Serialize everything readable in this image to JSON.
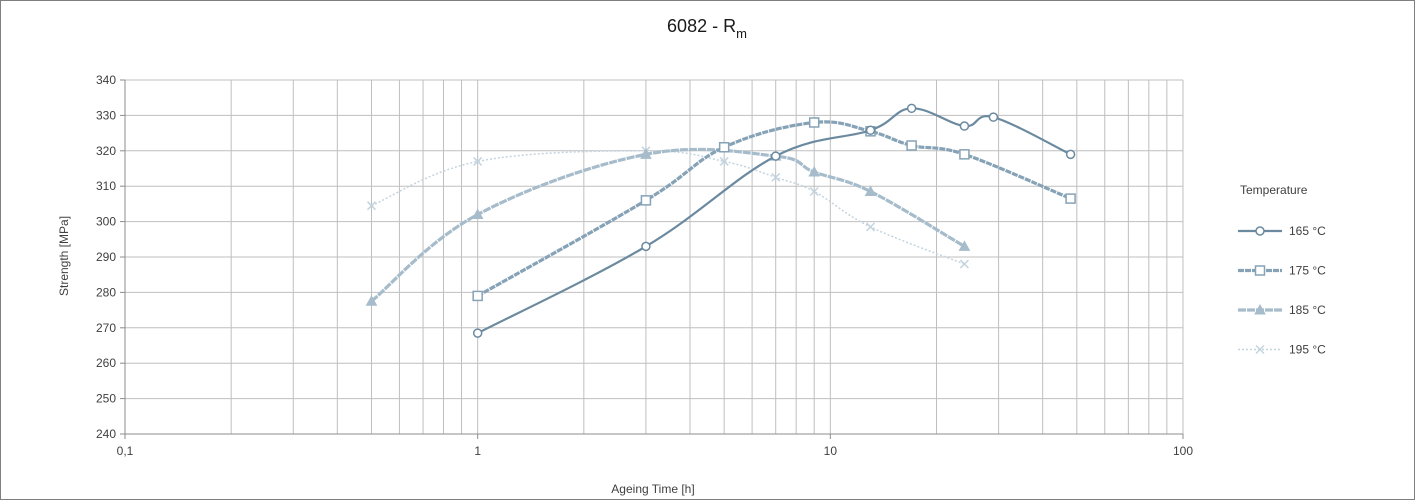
{
  "chart_data": {
    "type": "line",
    "title_main": "6082 - R",
    "title_sub": "m",
    "xlabel": "Ageing Time [h]",
    "ylabel": "Strength [MPa]",
    "x_scale": "log",
    "xlim": [
      0.1,
      100
    ],
    "ylim": [
      240,
      340
    ],
    "x_ticks": [
      0.1,
      1,
      10,
      100
    ],
    "x_tick_labels": [
      "0,1",
      "1",
      "10",
      "100"
    ],
    "y_ticks": [
      240,
      250,
      260,
      270,
      280,
      290,
      300,
      310,
      320,
      330,
      340
    ],
    "y_tick_labels": [
      "240",
      "250",
      "260",
      "270",
      "280",
      "290",
      "300",
      "310",
      "320",
      "330",
      "340"
    ],
    "grid": true,
    "legend_title": "Temperature",
    "legend_position": "right",
    "series": [
      {
        "name": "165 °C",
        "marker": "circle",
        "color": "#6b8aa0",
        "x": [
          1,
          3,
          7,
          13,
          17,
          24,
          29,
          48
        ],
        "y": [
          268.5,
          293,
          318.5,
          325.8,
          332,
          327,
          329.5,
          319
        ]
      },
      {
        "name": "175 °C",
        "marker": "square",
        "color": "#86a2b6",
        "x": [
          1,
          3,
          5,
          9,
          13,
          17,
          24,
          48
        ],
        "y": [
          279,
          306,
          321,
          328,
          325.5,
          321.5,
          319,
          306.5
        ]
      },
      {
        "name": "185 °C",
        "marker": "triangle",
        "color": "#a6bccb",
        "x": [
          0.5,
          1,
          3,
          7,
          9,
          13,
          24
        ],
        "y": [
          277.5,
          302,
          319,
          318.5,
          314,
          308.5,
          293
        ]
      },
      {
        "name": "195 °C",
        "marker": "cross",
        "color": "#c4d4df",
        "x": [
          0.5,
          1,
          3,
          5,
          7,
          9,
          13,
          24
        ],
        "y": [
          304.5,
          317,
          320,
          317,
          312.5,
          308.5,
          298.5,
          288
        ]
      }
    ]
  }
}
